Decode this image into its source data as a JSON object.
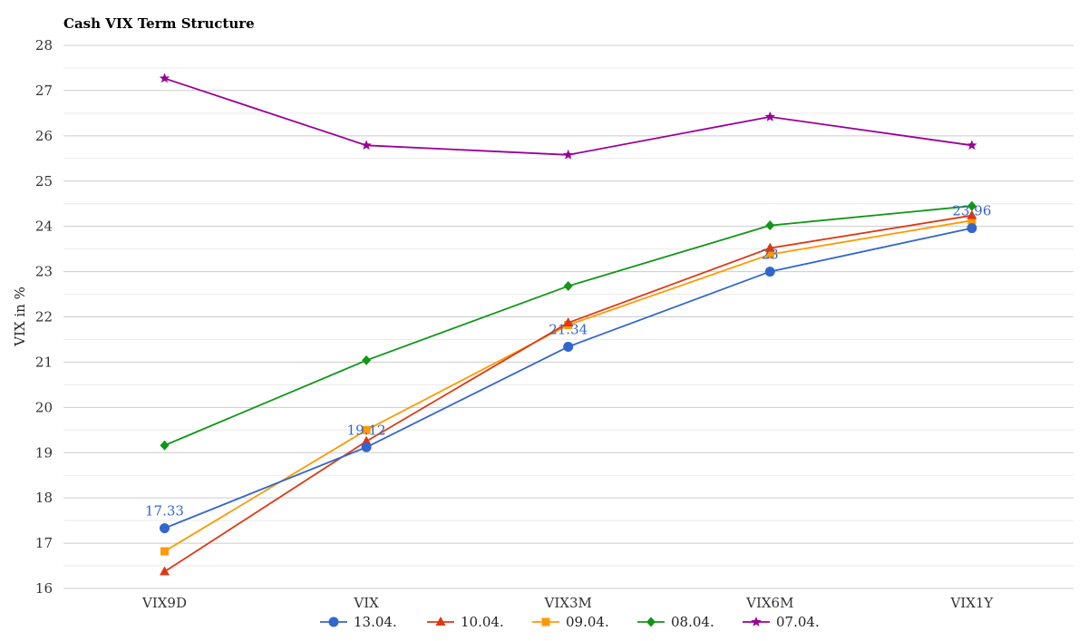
{
  "chart_data": {
    "type": "line",
    "title": "Cash VIX Term Structure",
    "xlabel": "",
    "ylabel": "VIX in %",
    "ylim": [
      16,
      28
    ],
    "yticks": [
      16,
      17,
      18,
      19,
      20,
      21,
      22,
      23,
      24,
      25,
      26,
      27,
      28
    ],
    "grid": true,
    "legend": "bottom",
    "categories": [
      "VIX9D",
      "VIX",
      "VIX3M",
      "VIX6M",
      "VIX1Y"
    ],
    "series": [
      {
        "name": "13.04.",
        "color": "#3366cc",
        "marker": "circle",
        "values": [
          17.33,
          19.12,
          21.34,
          23.0,
          23.96
        ],
        "labels": [
          "17.33",
          "19.12",
          "21.34",
          "23",
          "23.96"
        ]
      },
      {
        "name": "10.04.",
        "color": "#dc3912",
        "marker": "triangle",
        "values": [
          16.37,
          19.25,
          21.87,
          23.52,
          24.24
        ]
      },
      {
        "name": "09.04.",
        "color": "#ff9900",
        "marker": "square",
        "values": [
          16.82,
          19.5,
          21.82,
          23.38,
          24.13
        ]
      },
      {
        "name": "08.04.",
        "color": "#109618",
        "marker": "diamond",
        "values": [
          19.16,
          21.04,
          22.68,
          24.02,
          24.45
        ]
      },
      {
        "name": "07.04.",
        "color": "#990099",
        "marker": "star",
        "values": [
          27.27,
          25.79,
          25.58,
          26.42,
          25.79
        ]
      }
    ]
  }
}
